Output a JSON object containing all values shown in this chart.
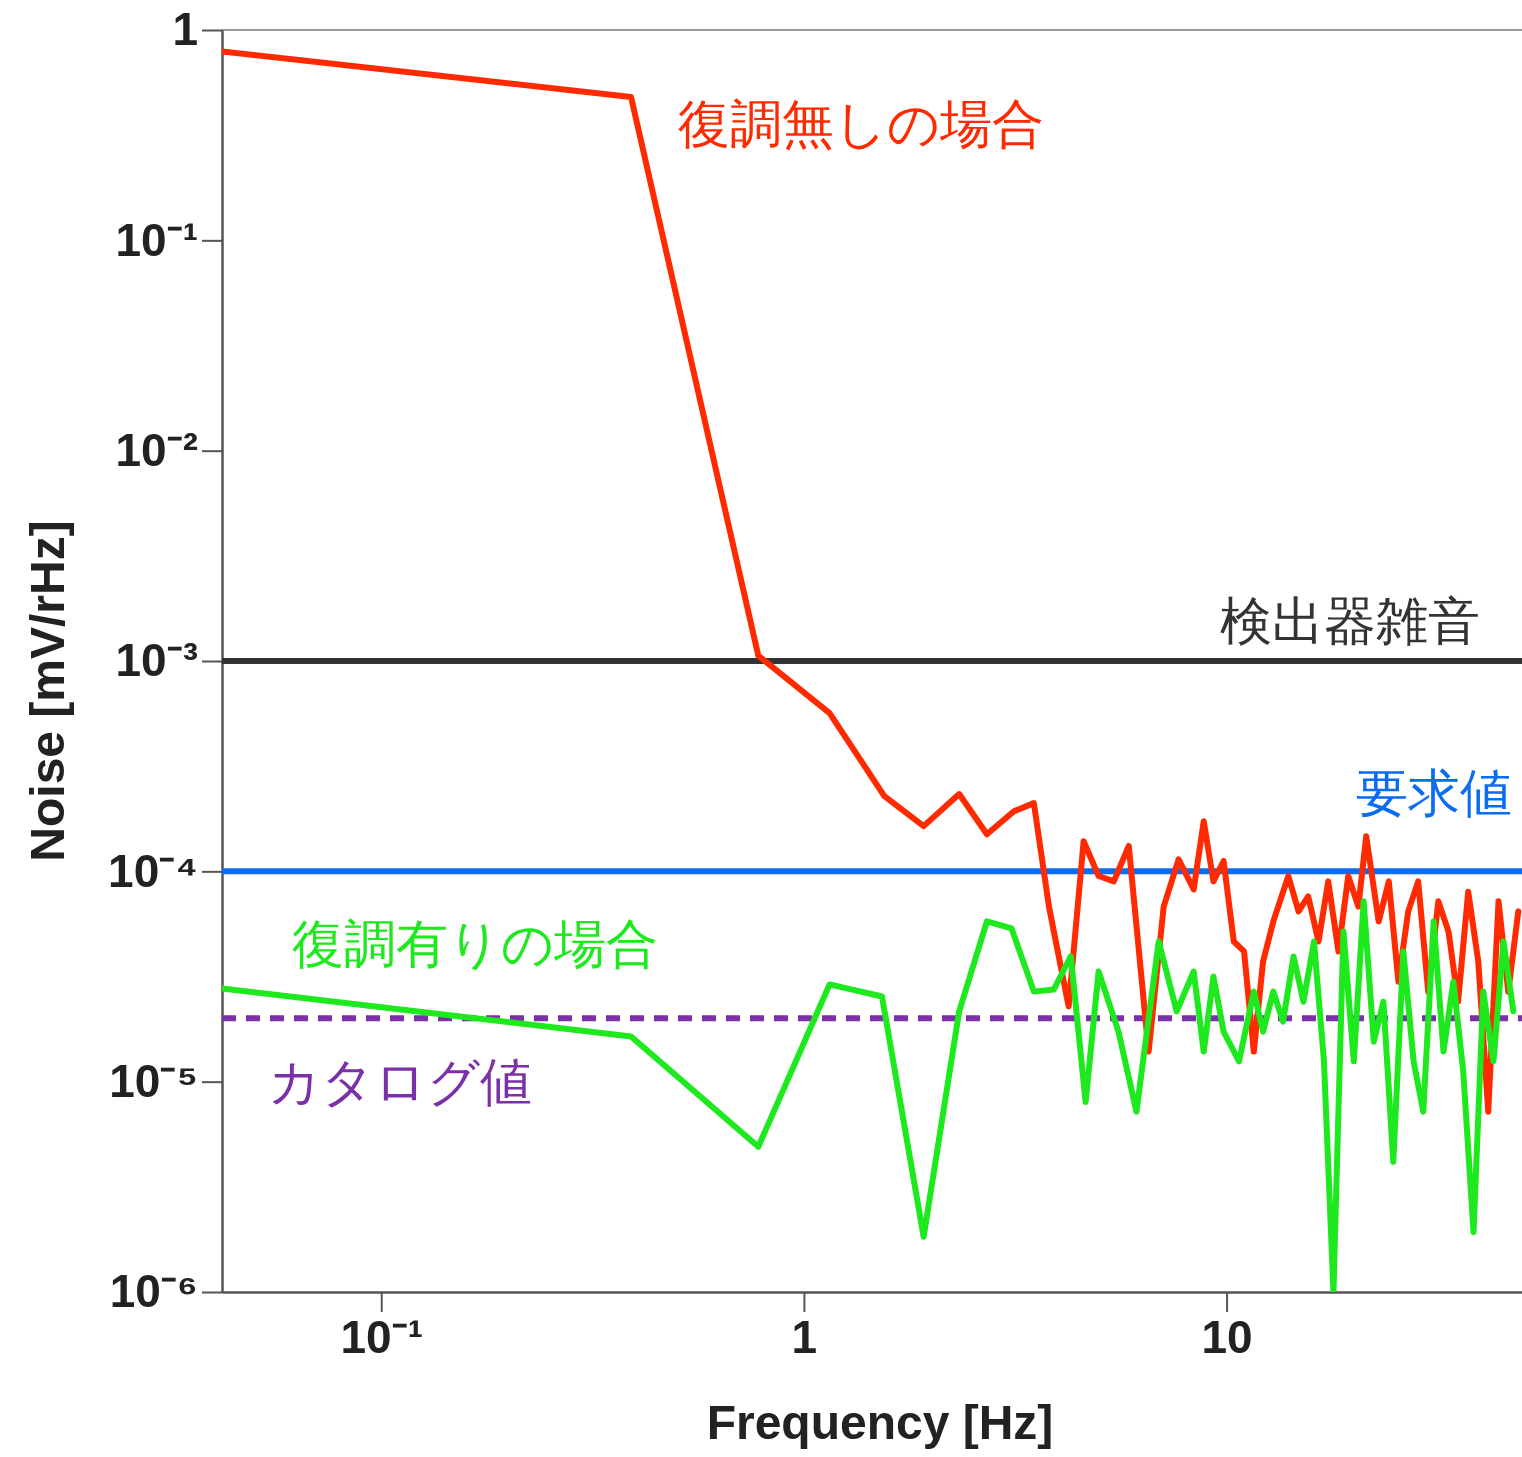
{
  "chart_data": {
    "type": "line",
    "xlabel": "Frequency [Hz]",
    "ylabel": "Noise [mV/rHz]",
    "log": "xy",
    "grid": false,
    "legend": false,
    "marker": "none",
    "line_style": "solid",
    "xlim": [
      0.042,
      50
    ],
    "ylim": [
      1e-06,
      1
    ],
    "xticks": [
      {
        "value": 0.1,
        "label": "10⁻¹"
      },
      1,
      10
    ],
    "yticks": [
      {
        "value": 1e-06,
        "label": "10⁻⁶"
      },
      {
        "value": 1e-05,
        "label": "10⁻⁵"
      },
      {
        "value": 0.0001,
        "label": "10⁻⁴"
      },
      {
        "value": 0.001,
        "label": "10⁻³"
      },
      {
        "value": 0.01,
        "label": "10⁻²"
      },
      {
        "value": 0.1,
        "label": "10⁻¹"
      },
      1
    ],
    "series": [
      {
        "name": "復調無しの場合",
        "color": "#ff2a00",
        "x": [
          0.042,
          0.39,
          0.78,
          1.15,
          1.55,
          1.92,
          2.33,
          2.71,
          3.14,
          3.5,
          3.8,
          4.23,
          4.59,
          4.98,
          5.41,
          5.87,
          6.54,
          7.1,
          7.7,
          8.36,
          8.83,
          9.31,
          9.84,
          10.4,
          11.0,
          11.6,
          12.2,
          12.9,
          14.0,
          14.8,
          15.6,
          16.5,
          17.4,
          18.4,
          19.4,
          20.5,
          21.4,
          22.9,
          24.2,
          25.5,
          26.9,
          28.4,
          30.0,
          31.7,
          33.5,
          35.3,
          37.3,
          39.4,
          41.6,
          44.0,
          46.4,
          49.0
        ],
        "values": [
          0.79,
          0.48,
          0.00106,
          0.000565,
          0.000228,
          0.000164,
          0.000233,
          0.00015,
          0.000193,
          0.000211,
          6.8e-05,
          2.28e-05,
          0.000139,
          9.5e-05,
          8.96e-05,
          0.000132,
          1.39e-05,
          6.8e-05,
          0.000114,
          8.2e-05,
          0.000173,
          8.96e-05,
          0.000112,
          4.64e-05,
          4.16e-05,
          1.39e-05,
          3.73e-05,
          5.78e-05,
          9.5e-05,
          6.45e-05,
          7.6e-05,
          4.64e-05,
          8.96e-05,
          4.16e-05,
          9.5e-05,
          6.8e-05,
          0.000147,
          5.78e-05,
          8.96e-05,
          2.99e-05,
          6.45e-05,
          8.96e-05,
          2.68e-05,
          7.2e-05,
          5.18e-05,
          2.4e-05,
          8e-05,
          3.73e-05,
          7.2e-06,
          7.2e-05,
          2.68e-05,
          6.45e-05
        ]
      },
      {
        "name": "復調有りの場合",
        "color": "#1ee81e",
        "x": [
          0.042,
          0.39,
          0.78,
          1.15,
          1.53,
          1.92,
          2.33,
          2.71,
          3.1,
          3.5,
          3.9,
          4.28,
          4.64,
          4.98,
          5.55,
          6.12,
          6.91,
          7.62,
          8.36,
          8.83,
          9.31,
          9.84,
          10.7,
          11.6,
          12.2,
          12.9,
          13.6,
          14.4,
          15.2,
          16.1,
          17.0,
          17.9,
          18.9,
          20.0,
          21.1,
          22.3,
          23.5,
          24.8,
          26.2,
          27.7,
          29.2,
          30.9,
          32.6,
          34.4,
          36.3,
          38.4,
          40.5,
          42.8,
          45.2,
          47.7
        ],
        "values": [
          2.77e-05,
          1.64e-05,
          4.9e-06,
          2.9e-05,
          2.54e-05,
          1.83e-06,
          2.16e-05,
          5.78e-05,
          5.35e-05,
          2.68e-05,
          2.74e-05,
          3.94e-05,
          8e-06,
          3.34e-05,
          1.73e-05,
          7.2e-06,
          4.64e-05,
          2.16e-05,
          3.34e-05,
          1.39e-05,
          3.16e-05,
          1.73e-05,
          1.25e-05,
          2.68e-05,
          1.73e-05,
          2.68e-05,
          1.93e-05,
          3.94e-05,
          2.4e-05,
          4.64e-05,
          1.25e-05,
          1e-06,
          5.18e-05,
          1.25e-05,
          7.2e-05,
          1.55e-05,
          2.4e-05,
          4.16e-06,
          4.16e-05,
          1.25e-05,
          7.2e-06,
          5.78e-05,
          1.39e-05,
          2.99e-05,
          1.12e-05,
          1.93e-06,
          2.68e-05,
          1.25e-05,
          4.64e-05,
          2.16e-05
        ]
      }
    ],
    "ref_lines": [
      {
        "axis": "y",
        "value": 0.001,
        "label": "検出器雑音",
        "color": "#333333",
        "line_style": "solid"
      },
      {
        "axis": "y",
        "value": 0.0001,
        "label": "要求値",
        "color": "#0a6cf0",
        "line_style": "solid"
      },
      {
        "axis": "y",
        "value": 2e-05,
        "label": "カタログ値",
        "color": "#7b2fa8",
        "line_style": "dashed"
      }
    ]
  }
}
